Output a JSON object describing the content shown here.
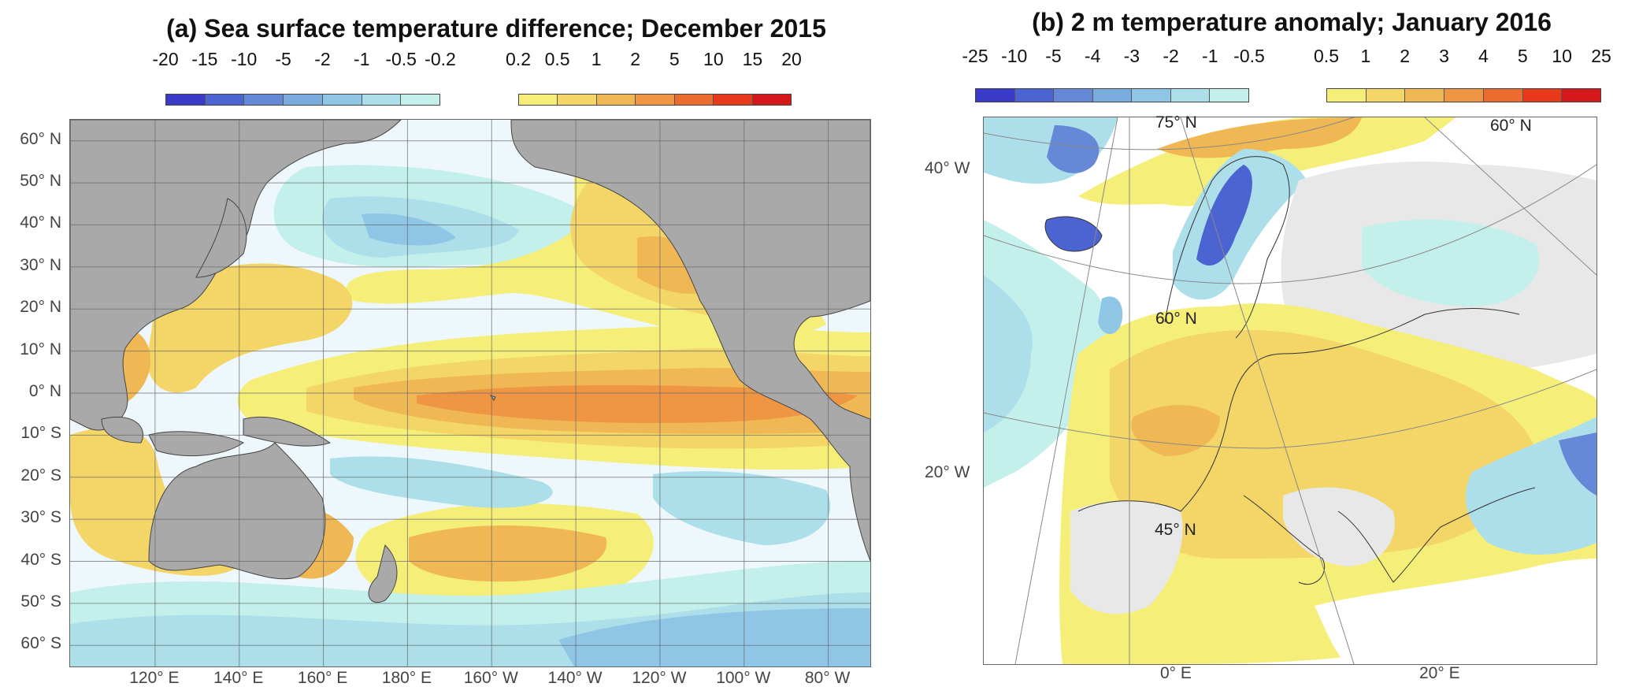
{
  "chart_data": [
    {
      "type": "heatmap",
      "title": "(a) Sea surface temperature difference; December 2015",
      "colorbar": {
        "negative": {
          "ticks": [
            "-20",
            "-15",
            "-10",
            "-5",
            "-2",
            "-1",
            "-0.5",
            "-0.2"
          ],
          "colors": [
            "#3a3ac8",
            "#4c63d2",
            "#6589d6",
            "#7aaddd",
            "#8fc6e6",
            "#addfea",
            "#c4f0ec"
          ]
        },
        "positive": {
          "ticks": [
            "0.2",
            "0.5",
            "1",
            "2",
            "5",
            "10",
            "15",
            "20"
          ],
          "colors": [
            "#f5ef7a",
            "#f3d667",
            "#efb855",
            "#ef9644",
            "#eb6c2e",
            "#e8391c",
            "#d4171a"
          ]
        }
      },
      "xticks": [
        {
          "lon": 120,
          "label": "120° E"
        },
        {
          "lon": 140,
          "label": "140° E"
        },
        {
          "lon": 160,
          "label": "160° E"
        },
        {
          "lon": 180,
          "label": "180° E"
        },
        {
          "lon": 200,
          "label": "160° W"
        },
        {
          "lon": 220,
          "label": "140° W"
        },
        {
          "lon": 240,
          "label": "120° W"
        },
        {
          "lon": 260,
          "label": "100° W"
        },
        {
          "lon": 280,
          "label": "80° W"
        }
      ],
      "yticks": [
        {
          "lat": 60,
          "label": "60° N"
        },
        {
          "lat": 50,
          "label": "50° N"
        },
        {
          "lat": 40,
          "label": "40° N"
        },
        {
          "lat": 30,
          "label": "30° N"
        },
        {
          "lat": 20,
          "label": "20° N"
        },
        {
          "lat": 10,
          "label": "10° N"
        },
        {
          "lat": 0,
          "label": "0° N"
        },
        {
          "lat": -10,
          "label": "10° S"
        },
        {
          "lat": -20,
          "label": "20° S"
        },
        {
          "lat": -30,
          "label": "30° S"
        },
        {
          "lat": -40,
          "label": "40° S"
        },
        {
          "lat": -50,
          "label": "50° S"
        },
        {
          "lat": -60,
          "label": "60° S"
        }
      ],
      "xlim": [
        99.8,
        290
      ],
      "ylim": [
        -65,
        65
      ],
      "grid": true,
      "land_color": "#a9a9a9",
      "ocean_base_color": "#eef8fc"
    },
    {
      "type": "heatmap",
      "title": "(b) 2 m temperature anomaly; January 2016",
      "colorbar": {
        "negative": {
          "ticks": [
            "-25",
            "-10",
            "-5",
            "-4",
            "-3",
            "-2",
            "-1",
            "-0.5"
          ],
          "colors": [
            "#3a3ac8",
            "#4c63d2",
            "#6589d6",
            "#7aaddd",
            "#8fc6e6",
            "#addfea",
            "#c4f0ec"
          ]
        },
        "positive": {
          "ticks": [
            "0.5",
            "1",
            "2",
            "3",
            "4",
            "5",
            "10",
            "25"
          ],
          "colors": [
            "#f5ef7a",
            "#f3d667",
            "#efb855",
            "#ef9644",
            "#eb6c2e",
            "#e8391c",
            "#d4171a"
          ]
        }
      },
      "side_labels": [
        {
          "label": "40° W"
        },
        {
          "label": "20° W"
        }
      ],
      "bottom_labels": [
        {
          "label": "0° E"
        },
        {
          "label": "20° E"
        }
      ],
      "inner_labels": [
        {
          "label": "75° N"
        },
        {
          "label": "60° N"
        },
        {
          "label": "45° N"
        },
        {
          "label": "60° N"
        }
      ],
      "grid": true,
      "land_neutral_color": "#e8e8e8",
      "ocean_neutral_color": "#ffffff"
    }
  ]
}
